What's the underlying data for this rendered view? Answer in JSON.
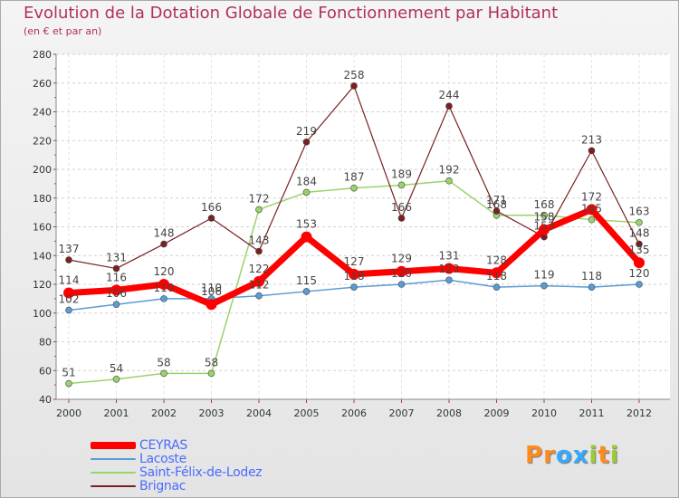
{
  "title": "Evolution de la Dotation Globale de Fonctionnement par Habitant",
  "subtitle": "(en € et par an)",
  "logo": {
    "text": "Proxiti",
    "letters": [
      "P",
      "r",
      "o",
      "x",
      "i",
      "t",
      "i"
    ],
    "colors": [
      "#ff8c1a",
      "#ff8c1a",
      "#33aaff",
      "#33aaff",
      "#9acd32",
      "#ff8c1a",
      "#9acd32"
    ]
  },
  "chart_data": {
    "type": "line",
    "title": "Evolution de la Dotation Globale de Fonctionnement par Habitant",
    "subtitle": "(en € et par an)",
    "categories": [
      "2000",
      "2001",
      "2002",
      "2003",
      "2004",
      "2005",
      "2006",
      "2007",
      "2008",
      "2009",
      "2010",
      "2011",
      "2012"
    ],
    "ylim": [
      40,
      280
    ],
    "yticks": [
      40,
      60,
      80,
      100,
      120,
      140,
      160,
      180,
      200,
      220,
      240,
      260,
      280
    ],
    "grid": "horizontal dashed",
    "legend_position": "bottom-left",
    "series": [
      {
        "name": "CEYRAS",
        "color": "#ff0000",
        "values": [
          114,
          116,
          120,
          106,
          122,
          153,
          127,
          129,
          131,
          128,
          158,
          172,
          135
        ]
      },
      {
        "name": "Lacoste",
        "color": "#5b9bd5",
        "values": [
          102,
          106,
          110,
          110,
          112,
          115,
          118,
          120,
          123,
          118,
          119,
          118,
          120
        ]
      },
      {
        "name": "Saint-Félix-de-Lodez",
        "color": "#9ad36a",
        "values": [
          51,
          54,
          58,
          58,
          172,
          184,
          187,
          189,
          192,
          168,
          168,
          165,
          163
        ]
      },
      {
        "name": "Brignac",
        "color": "#7b2020",
        "values": [
          137,
          131,
          148,
          166,
          143,
          219,
          258,
          166,
          244,
          171,
          153,
          213,
          148
        ]
      }
    ]
  }
}
